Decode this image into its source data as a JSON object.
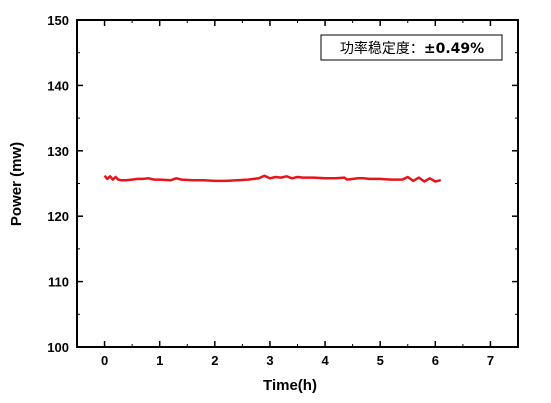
{
  "chart_data": {
    "type": "line",
    "xlabel": "Time(h)",
    "ylabel": "Power (mw)",
    "xlim": [
      -0.5,
      7.5
    ],
    "ylim": [
      100,
      150
    ],
    "xticks": [
      0,
      1,
      2,
      3,
      4,
      5,
      6,
      7
    ],
    "yticks": [
      100,
      110,
      120,
      130,
      140,
      150
    ],
    "x_tick_labels": [
      "0",
      "1",
      "2",
      "3",
      "4",
      "5",
      "6",
      "7"
    ],
    "y_tick_labels": [
      "100",
      "110",
      "120",
      "130",
      "140",
      "150"
    ],
    "grid": false,
    "annotation": {
      "label": "功率稳定度：",
      "value": "±0.49%",
      "placement": "top-right"
    },
    "series": [
      {
        "color": "#e8141b",
        "x": [
          0,
          0.05,
          0.1,
          0.15,
          0.2,
          0.25,
          0.3,
          0.4,
          0.5,
          0.6,
          0.7,
          0.8,
          0.9,
          1.0,
          1.2,
          1.3,
          1.4,
          1.6,
          1.8,
          2.0,
          2.2,
          2.4,
          2.6,
          2.8,
          2.9,
          3.0,
          3.1,
          3.2,
          3.3,
          3.4,
          3.5,
          3.6,
          3.8,
          4.0,
          4.2,
          4.35,
          4.4,
          4.6,
          4.7,
          4.8,
          5.0,
          5.2,
          5.4,
          5.5,
          5.6,
          5.7,
          5.8,
          5.9,
          6.0,
          6.1
        ],
        "y": [
          126.2,
          125.7,
          126.1,
          125.6,
          126.0,
          125.6,
          125.5,
          125.5,
          125.6,
          125.7,
          125.7,
          125.8,
          125.6,
          125.6,
          125.5,
          125.8,
          125.6,
          125.5,
          125.5,
          125.4,
          125.4,
          125.5,
          125.6,
          125.8,
          126.2,
          125.8,
          126.0,
          125.9,
          126.1,
          125.8,
          126.0,
          125.9,
          125.9,
          125.8,
          125.8,
          125.9,
          125.6,
          125.8,
          125.8,
          125.7,
          125.7,
          125.6,
          125.6,
          126.0,
          125.4,
          125.9,
          125.3,
          125.8,
          125.3,
          125.5
        ]
      }
    ]
  }
}
